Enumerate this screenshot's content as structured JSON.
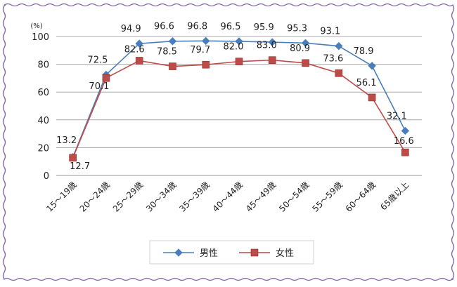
{
  "chart_data": {
    "type": "line",
    "y_unit_label": "(%)",
    "ylim": [
      0,
      100
    ],
    "yticks": [
      0,
      20,
      40,
      60,
      80,
      100
    ],
    "grid": true,
    "legend_position": "bottom",
    "categories": [
      "15～19歳",
      "20～24歳",
      "25～29歳",
      "30～34歳",
      "35～39歳",
      "40～44歳",
      "45～49歳",
      "50～54歳",
      "55～59歳",
      "60～64歳",
      "65歳以上"
    ],
    "series": [
      {
        "name": "男性",
        "color": "#4a7ebb",
        "marker": "diamond",
        "values": [
          13.2,
          72.5,
          94.9,
          96.6,
          96.8,
          96.5,
          95.9,
          95.3,
          93.1,
          78.9,
          32.1
        ],
        "labels": [
          "13.2",
          "72.5",
          "94.9",
          "96.6",
          "96.8",
          "96.5",
          "95.9",
          "95.3",
          "93.1",
          "78.9",
          "32.1"
        ]
      },
      {
        "name": "女性",
        "color": "#be4b48",
        "marker": "square",
        "values": [
          12.7,
          70.1,
          82.6,
          78.5,
          79.7,
          82.0,
          83.0,
          80.9,
          73.6,
          56.1,
          16.6
        ],
        "labels": [
          "12.7",
          "70.1",
          "82.6",
          "78.5",
          "79.7",
          "82.0",
          "83.0",
          "80.9",
          "73.6",
          "56.1",
          "16.6"
        ]
      }
    ]
  },
  "frame": {
    "border_color": "#8060a8"
  }
}
